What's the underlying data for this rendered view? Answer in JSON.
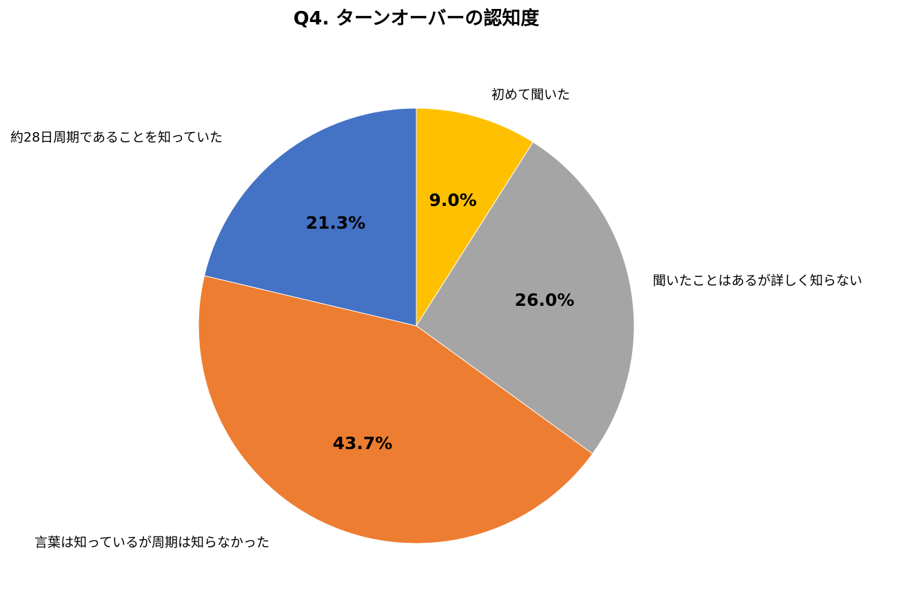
{
  "chart_data": {
    "type": "pie",
    "title": "Q4. ターンオーバーの認知度",
    "categories": [
      "初めて聞いた",
      "聞いたことはあるが詳しく知らない",
      "言葉は知っているが周期は知らなかった",
      "約28日周期であることを知っていた"
    ],
    "values": [
      9.0,
      26.0,
      43.7,
      21.3
    ],
    "value_labels": [
      "9.0%",
      "26.0%",
      "43.7%",
      "21.3%"
    ],
    "colors": [
      "#ffc000",
      "#a5a5a5",
      "#ed7d31",
      "#4472c4"
    ]
  }
}
